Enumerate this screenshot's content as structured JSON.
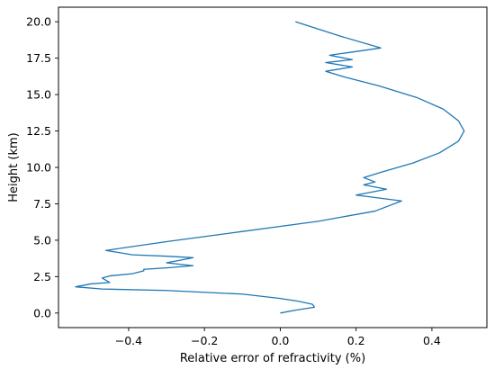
{
  "chart_data": {
    "type": "line",
    "title": "",
    "xlabel": "Relative error of refractivity (%)",
    "ylabel": "Height (km)",
    "xlim": [
      -0.585,
      0.545
    ],
    "ylim": [
      -1.0,
      21.0
    ],
    "grid": false,
    "color": "#1f77b4",
    "xticks": [
      -0.4,
      -0.2,
      0.0,
      0.2,
      0.4
    ],
    "xtick_labels": [
      "−0.4",
      "−0.2",
      "0.0",
      "0.2",
      "0.4"
    ],
    "yticks": [
      0.0,
      2.5,
      5.0,
      7.5,
      10.0,
      12.5,
      15.0,
      17.5,
      20.0
    ],
    "ytick_labels": [
      "0.0",
      "2.5",
      "5.0",
      "7.5",
      "10.0",
      "12.5",
      "15.0",
      "17.5",
      "20.0"
    ],
    "series": [
      {
        "x": [
          0.0,
          0.04,
          0.09,
          0.085,
          0.05,
          0.0,
          -0.1,
          -0.3,
          -0.47,
          -0.54,
          -0.5,
          -0.45,
          -0.47,
          -0.45,
          -0.39,
          -0.36,
          -0.36,
          -0.3,
          -0.23,
          -0.3,
          -0.23,
          -0.3,
          -0.39,
          -0.46,
          -0.3,
          -0.1,
          0.1,
          0.25,
          0.32,
          0.2,
          0.28,
          0.22,
          0.25,
          0.22,
          0.27,
          0.35,
          0.42,
          0.47,
          0.485,
          0.47,
          0.43,
          0.36,
          0.26,
          0.17,
          0.12,
          0.19,
          0.12,
          0.19,
          0.13,
          0.265,
          0.16,
          0.04
        ],
        "y": [
          0.0,
          0.2,
          0.4,
          0.6,
          0.8,
          1.0,
          1.3,
          1.55,
          1.65,
          1.8,
          2.0,
          2.1,
          2.4,
          2.55,
          2.7,
          2.9,
          3.0,
          3.1,
          3.25,
          3.45,
          3.8,
          3.9,
          4.0,
          4.3,
          4.9,
          5.6,
          6.3,
          7.0,
          7.7,
          8.1,
          8.5,
          8.8,
          9.0,
          9.3,
          9.7,
          10.3,
          11.0,
          11.8,
          12.5,
          13.2,
          14.0,
          14.8,
          15.6,
          16.2,
          16.6,
          16.9,
          17.2,
          17.4,
          17.7,
          18.2,
          19.0,
          20.0
        ]
      }
    ]
  }
}
